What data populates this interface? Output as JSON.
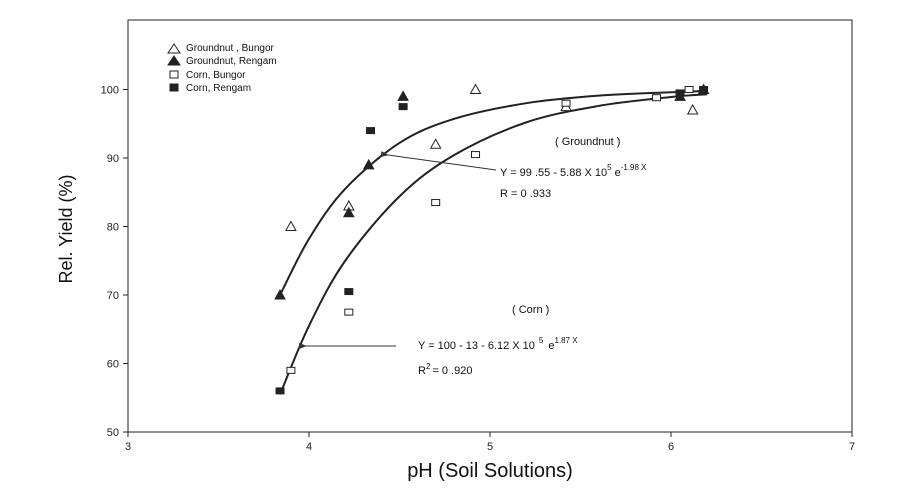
{
  "chart_data": {
    "type": "scatter",
    "xlabel": "pH (Soil Solutions)",
    "ylabel": "Rel. Yield (%)",
    "xlim": [
      3,
      7
    ],
    "ylim": [
      50,
      105
    ],
    "x_ticks": [
      "3",
      "4",
      "5",
      "6",
      "7"
    ],
    "y_ticks": [
      "50",
      "60",
      "70",
      "80",
      "90",
      "100"
    ],
    "grid": false,
    "legend_position": "top-left",
    "series": [
      {
        "name": "Groundnut , Bungor",
        "marker": "triangle-open",
        "points": [
          [
            3.9,
            80
          ],
          [
            4.22,
            83
          ],
          [
            4.7,
            92
          ],
          [
            4.92,
            100
          ],
          [
            5.42,
            97.5
          ],
          [
            6.12,
            97
          ]
        ]
      },
      {
        "name": "Groundnut, Rengam",
        "marker": "triangle-filled",
        "points": [
          [
            3.84,
            70
          ],
          [
            4.22,
            82
          ],
          [
            4.33,
            89
          ],
          [
            4.52,
            99
          ],
          [
            6.05,
            99
          ],
          [
            6.18,
            100
          ]
        ]
      },
      {
        "name": "Corn, Bungor",
        "marker": "square-open",
        "points": [
          [
            3.9,
            59
          ],
          [
            4.22,
            67.5
          ],
          [
            4.7,
            83.5
          ],
          [
            4.92,
            90.5
          ],
          [
            5.42,
            98
          ],
          [
            5.92,
            98.8
          ],
          [
            6.1,
            100
          ]
        ]
      },
      {
        "name": "Corn, Rengam",
        "marker": "square-filled",
        "points": [
          [
            3.84,
            56
          ],
          [
            4.22,
            70.5
          ],
          [
            4.34,
            94
          ],
          [
            4.52,
            97.5
          ],
          [
            6.05,
            99.5
          ],
          [
            6.18,
            100
          ]
        ]
      }
    ],
    "fit_curves": [
      {
        "name": "Groundnut",
        "points": [
          [
            3.84,
            70
          ],
          [
            4.0,
            78.2
          ],
          [
            4.2,
            85.5
          ],
          [
            4.5,
            92.2
          ],
          [
            4.8,
            95.7
          ],
          [
            5.2,
            98.0
          ],
          [
            5.6,
            99.1
          ],
          [
            6.0,
            99.6
          ],
          [
            6.2,
            99.8
          ]
        ]
      },
      {
        "name": "Corn",
        "points": [
          [
            3.84,
            55.5
          ],
          [
            4.0,
            65.5
          ],
          [
            4.2,
            75.0
          ],
          [
            4.5,
            84.4
          ],
          [
            4.8,
            90.4
          ],
          [
            5.2,
            95.2
          ],
          [
            5.6,
            97.6
          ],
          [
            6.0,
            98.9
          ],
          [
            6.2,
            99.3
          ]
        ]
      }
    ],
    "annotations": {
      "groundnut_label": "( Groundnut )",
      "groundnut_eq_main": "Y = 99 .55  -  5.88  X 10",
      "groundnut_eq_exp1": "5",
      "groundnut_eq_e": "e",
      "groundnut_eq_exp2": "-1.98 X",
      "groundnut_r": "R = 0 .933",
      "corn_label": "( Corn )",
      "corn_eq_main": "Y  =  100 - 13  -  6.12   X  10",
      "corn_eq_exp1": "5",
      "corn_eq_e": "e",
      "corn_eq_exp2": "1.87 X",
      "corn_r_base": "R",
      "corn_r_exp": "2",
      "corn_r_rest": "= 0 .920"
    }
  }
}
